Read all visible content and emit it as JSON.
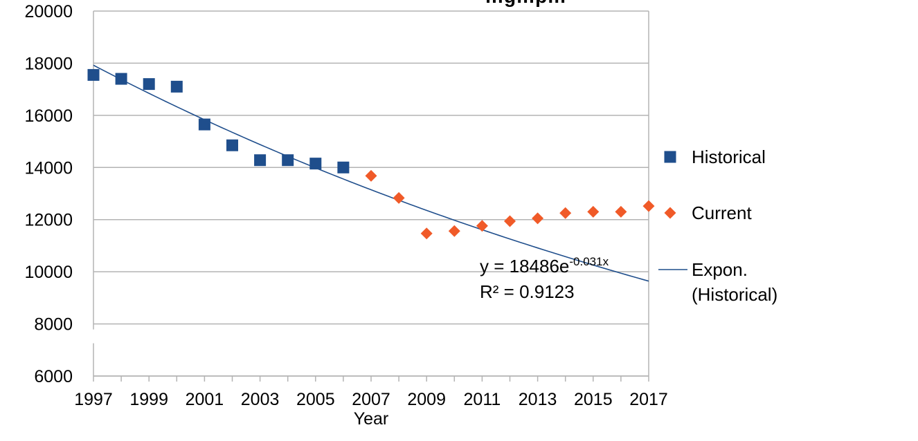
{
  "chart_data": {
    "type": "scatter",
    "title": "…g…p…",
    "xlabel": "Year",
    "ylabel": "",
    "xlim": [
      1997,
      2017
    ],
    "ylim": [
      6000,
      20000
    ],
    "x_ticks": [
      "1997",
      "1999",
      "2001",
      "2003",
      "2005",
      "2007",
      "2009",
      "2011",
      "2013",
      "2015",
      "2017"
    ],
    "y_ticks": [
      "6000",
      "8000",
      "10000",
      "12000",
      "14000",
      "16000",
      "18000",
      "20000"
    ],
    "grid": true,
    "legend_position": "right",
    "series": [
      {
        "name": "Historical",
        "marker": "square",
        "color": "#1f4e8c",
        "x": [
          1997,
          1998,
          1999,
          2000,
          2001,
          2002,
          2003,
          2004,
          2005,
          2006
        ],
        "y": [
          17550,
          17400,
          17200,
          17100,
          15650,
          14850,
          14280,
          14280,
          14150,
          14000
        ]
      },
      {
        "name": "Current",
        "marker": "diamond",
        "color": "#f05a28",
        "x": [
          2007,
          2008,
          2009,
          2010,
          2011,
          2012,
          2013,
          2014,
          2015,
          2016,
          2017
        ],
        "y": [
          13680,
          12830,
          11470,
          11560,
          11760,
          11940,
          12050,
          12250,
          12300,
          12300,
          12520
        ]
      }
    ],
    "trendline": {
      "name": "Expon. (Historical)",
      "type": "exponential",
      "color": "#1f4e8c",
      "a": 18486,
      "b": -0.031,
      "x_start": 1997,
      "x_end": 2017,
      "equation_main": "y = 18486e",
      "equation_exp": "-0.031x",
      "r_squared_label": "R² = 0.9123"
    },
    "legend": [
      {
        "label_lines": [
          "Historical"
        ],
        "marker": "square",
        "color": "#1f4e8c"
      },
      {
        "label_lines": [
          "Current"
        ],
        "marker": "diamond",
        "color": "#f05a28"
      },
      {
        "label_lines": [
          "Expon.",
          "(Historical)"
        ],
        "marker": "line",
        "color": "#1f4e8c"
      }
    ]
  }
}
